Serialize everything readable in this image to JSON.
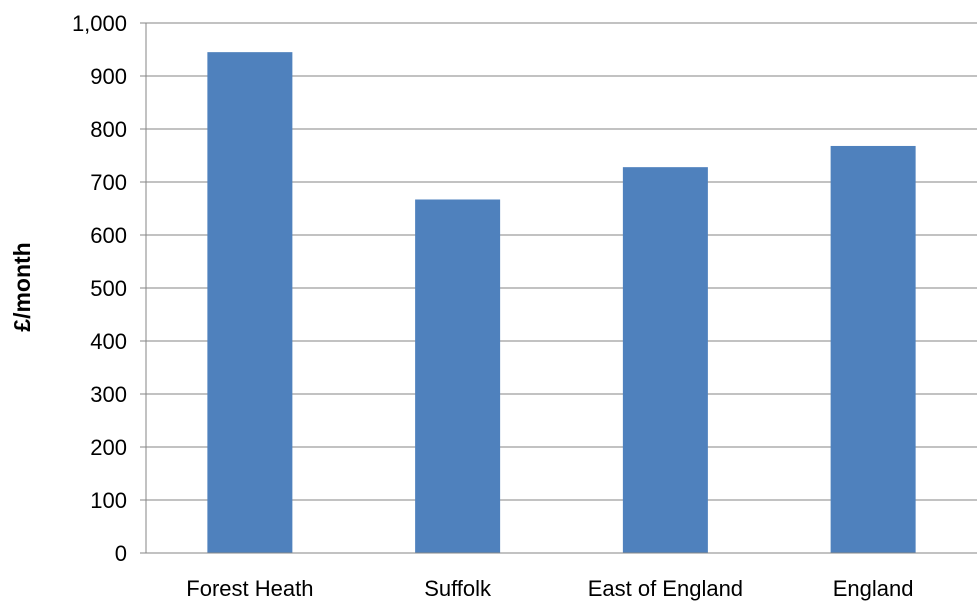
{
  "chart_data": {
    "type": "bar",
    "title": "",
    "xlabel": "",
    "ylabel": "£/month",
    "categories": [
      "Forest Heath",
      "Suffolk",
      "East of England",
      "England"
    ],
    "values": [
      945,
      667,
      728,
      768
    ],
    "ylim": [
      0,
      1000
    ],
    "yticks": [
      0,
      100,
      200,
      300,
      400,
      500,
      600,
      700,
      800,
      900,
      1000
    ],
    "ytick_labels": [
      "0",
      "100",
      "200",
      "300",
      "400",
      "500",
      "600",
      "700",
      "800",
      "900",
      "1,000"
    ],
    "grid": true,
    "legend": "none",
    "bar_color": "#4F81BD",
    "gridline_color": "#868686"
  }
}
